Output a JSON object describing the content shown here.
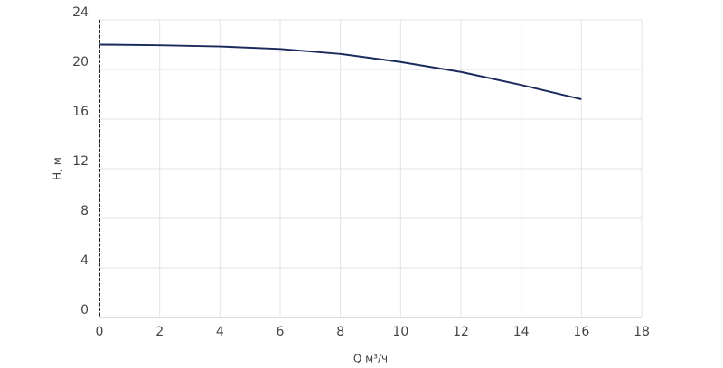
{
  "chart_data": {
    "type": "line",
    "x_label": "Q м³/ч",
    "y_label": "H, м",
    "x": [
      0,
      2,
      4,
      6,
      8,
      10,
      12,
      14,
      16
    ],
    "series": [
      {
        "color": "#1b2a5c",
        "values": [
          22.0,
          21.95,
          21.85,
          21.65,
          21.25,
          20.6,
          19.8,
          18.75,
          17.6
        ]
      }
    ],
    "xlim": [
      0,
      18
    ],
    "xticks": [
      0,
      2,
      4,
      6,
      8,
      10,
      12,
      14,
      16,
      18
    ],
    "ylim": [
      0,
      24
    ],
    "yticks": [
      0,
      4,
      8,
      12,
      16,
      20,
      24
    ],
    "grid": true
  }
}
